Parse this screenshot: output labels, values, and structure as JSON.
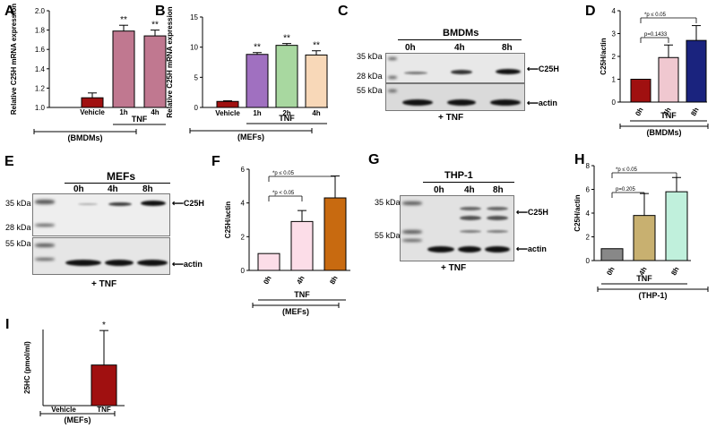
{
  "panels": {
    "A": {
      "letter": "A"
    },
    "B": {
      "letter": "B"
    },
    "C": {
      "letter": "C"
    },
    "D": {
      "letter": "D"
    },
    "E": {
      "letter": "E"
    },
    "F": {
      "letter": "F"
    },
    "G": {
      "letter": "G"
    },
    "H": {
      "letter": "H"
    },
    "I": {
      "letter": "I"
    }
  },
  "blots": {
    "C": {
      "title": "BMDMs",
      "lanes": [
        "0h",
        "4h",
        "8h"
      ],
      "mw": [
        "35 kDa",
        "28 kDa",
        "55 kDa"
      ],
      "targets": [
        "C25H",
        "actin"
      ],
      "treatment": "+ TNF"
    },
    "E": {
      "title": "MEFs",
      "lanes": [
        "0h",
        "4h",
        "8h"
      ],
      "mw": [
        "35 kDa",
        "28 kDa",
        "55 kDa"
      ],
      "targets": [
        "C25H",
        "actin"
      ],
      "treatment": "+ TNF"
    },
    "G": {
      "title": "THP-1",
      "lanes": [
        "0h",
        "4h",
        "8h"
      ],
      "mw": [
        "35 kDa",
        "55 kDa"
      ],
      "targets": [
        "C25H",
        "actin"
      ],
      "treatment": "+ TNF"
    }
  },
  "colors": {
    "dark_red": "#a01010",
    "mauve": "#c07890",
    "purple": "#a070c0",
    "green": "#a8d8a0",
    "peach": "#f8d8b8",
    "pink_light": "#f0c8d0",
    "navy": "#1a237e",
    "light_pink": "#fcdde8",
    "orange": "#c86a10",
    "gray": "#888888",
    "olive": "#c8b070",
    "mint": "#c0f0dc"
  },
  "chart_data": [
    {
      "id": "A",
      "type": "bar",
      "categories": [
        "Vehicle",
        "1h",
        "4h"
      ],
      "values": [
        1.1,
        1.79,
        1.74
      ],
      "errors": [
        0.05,
        0.06,
        0.06
      ],
      "significance": [
        "",
        "**",
        "**"
      ],
      "colors": [
        "#a01010",
        "#c07890",
        "#c07890"
      ],
      "ylabel": "Relative C25H mRNA expression",
      "ylim": [
        1.0,
        2.0
      ],
      "yticks": [
        "1.0",
        "1.2",
        "1.4",
        "1.6",
        "1.8",
        "2.0"
      ],
      "bracket": {
        "text": "TNF",
        "from": 1,
        "to": 2
      },
      "group": "(BMDMs)"
    },
    {
      "id": "B",
      "type": "bar",
      "categories": [
        "Vehicle",
        "1h",
        "2h",
        "4h"
      ],
      "values": [
        1.0,
        8.8,
        10.3,
        8.7
      ],
      "errors": [
        0.1,
        0.3,
        0.3,
        0.7
      ],
      "significance": [
        "",
        "**",
        "**",
        "**"
      ],
      "colors": [
        "#a01010",
        "#a070c0",
        "#a8d8a0",
        "#f8d8b8"
      ],
      "ylabel": "Relative C25H mRNA expression",
      "ylim": [
        0,
        15
      ],
      "yticks": [
        "0",
        "5",
        "10",
        "15"
      ],
      "bracket": {
        "text": "TNF",
        "from": 1,
        "to": 3
      },
      "group": "(MEFs)"
    },
    {
      "id": "D",
      "type": "bar",
      "categories": [
        "0h",
        "4h",
        "8h"
      ],
      "values": [
        1.0,
        1.95,
        2.7
      ],
      "errors": [
        0,
        0.55,
        0.65
      ],
      "colors": [
        "#a01010",
        "#f0c8d0",
        "#1a237e"
      ],
      "ylabel": "C25H/actin",
      "ylim": [
        0,
        4
      ],
      "yticks": [
        "0",
        "1",
        "2",
        "3",
        "4"
      ],
      "annotations": [
        {
          "text": "*p ≤ 0.05",
          "from": 0,
          "to": 2
        },
        {
          "text": "p=0.1433",
          "from": 0,
          "to": 1
        }
      ],
      "bracket": {
        "text": "TNF",
        "from": 0,
        "to": 2
      },
      "group": "(BMDMs)"
    },
    {
      "id": "F",
      "type": "bar",
      "categories": [
        "0h",
        "4h",
        "8h"
      ],
      "values": [
        1.0,
        2.9,
        4.3
      ],
      "errors": [
        0,
        0.65,
        1.3
      ],
      "colors": [
        "#fcdde8",
        "#fcdde8",
        "#c86a10"
      ],
      "ylabel": "C25H/actin",
      "ylim": [
        0,
        6
      ],
      "yticks": [
        "0",
        "2",
        "4",
        "6"
      ],
      "annotations": [
        {
          "text": "*p ≤ 0.05",
          "from": 0,
          "to": 2
        },
        {
          "text": "*p < 0.05",
          "from": 0,
          "to": 1
        }
      ],
      "bracket": {
        "text": "TNF",
        "from": 0,
        "to": 2
      },
      "group": "(MEFs)"
    },
    {
      "id": "H",
      "type": "bar",
      "categories": [
        "0h",
        "4h",
        "8h"
      ],
      "values": [
        1.0,
        3.8,
        5.8
      ],
      "errors": [
        0,
        1.85,
        1.2
      ],
      "colors": [
        "#888888",
        "#c8b070",
        "#c0f0dc"
      ],
      "ylabel": "C25H/actin",
      "ylim": [
        0,
        8
      ],
      "yticks": [
        "0",
        "2",
        "4",
        "6",
        "8"
      ],
      "annotations": [
        {
          "text": "*p ≤ 0.05",
          "from": 0,
          "to": 2
        },
        {
          "text": "p=0.205",
          "from": 0,
          "to": 1
        }
      ],
      "bracket": {
        "text": "TNF",
        "from": 0,
        "to": 2
      },
      "group": "(THP-1)"
    },
    {
      "id": "I",
      "type": "bar",
      "categories": [
        "Vehicle",
        "TNF"
      ],
      "values": [
        0,
        80
      ],
      "errors": [
        0,
        68
      ],
      "significance": [
        "",
        "*"
      ],
      "colors": [
        "#a01010",
        "#a01010"
      ],
      "ylabel": "25HC (pmol/ml)",
      "ylim": [
        0,
        150
      ],
      "yticks": [],
      "group": "(MEFs)"
    }
  ]
}
